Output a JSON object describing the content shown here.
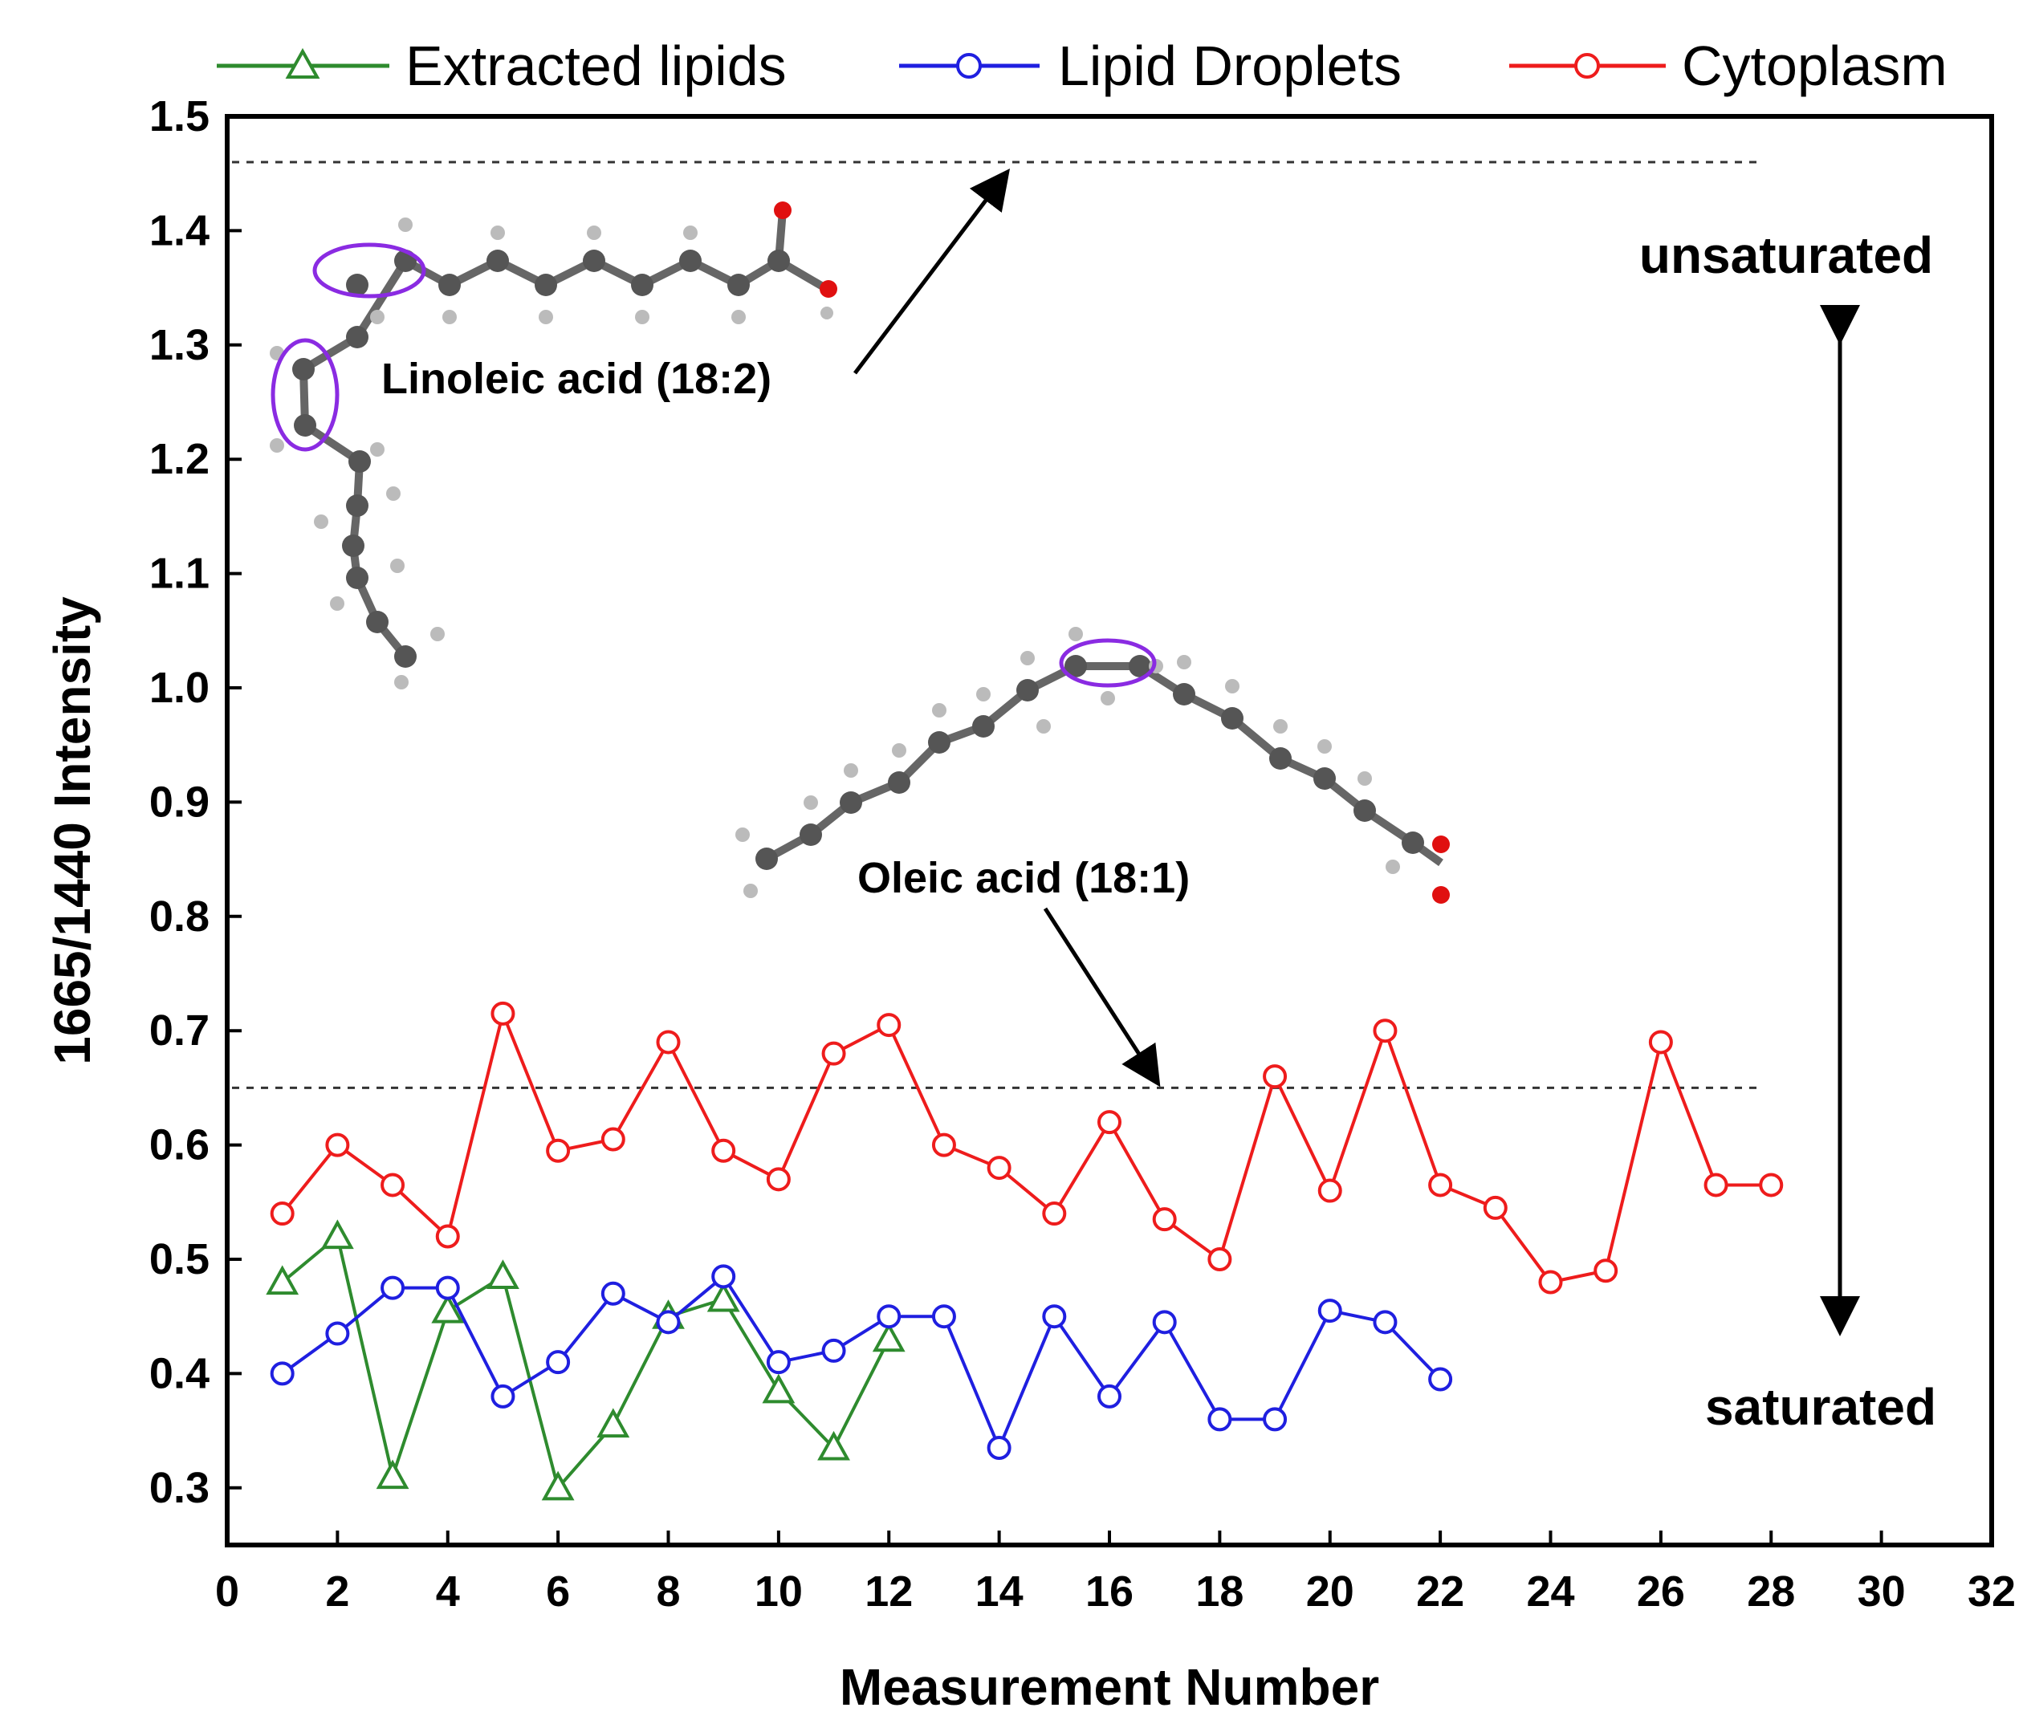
{
  "chart_data": {
    "type": "line",
    "title": "",
    "xlabel": "Measurement Number",
    "ylabel": "1665/1440 Intensity",
    "xlim": [
      0,
      32
    ],
    "ylim": [
      0.25,
      1.5
    ],
    "xticks": [
      0,
      2,
      4,
      6,
      8,
      10,
      12,
      14,
      16,
      18,
      20,
      22,
      24,
      26,
      28,
      30,
      32
    ],
    "yticks": [
      0.3,
      0.4,
      0.5,
      0.6,
      0.7,
      0.8,
      0.9,
      1.0,
      1.1,
      1.2,
      1.3,
      1.4,
      1.5
    ],
    "legend_position": "top",
    "series": [
      {
        "name": "Extracted lipids",
        "color": "#2e8b2e",
        "marker": "triangle",
        "x": [
          1,
          2,
          3,
          4,
          5,
          6,
          7,
          8,
          9,
          10,
          11,
          12
        ],
        "values": [
          0.48,
          0.52,
          0.31,
          0.455,
          0.485,
          0.3,
          0.355,
          0.45,
          0.465,
          0.385,
          0.335,
          0.43
        ]
      },
      {
        "name": "Lipid Droplets",
        "color": "#1f1fe0",
        "marker": "circle",
        "x": [
          1,
          2,
          3,
          4,
          5,
          6,
          7,
          8,
          9,
          10,
          11,
          12,
          13,
          14,
          15,
          16,
          17,
          18,
          19,
          20,
          21,
          22
        ],
        "values": [
          0.4,
          0.435,
          0.475,
          0.475,
          0.38,
          0.41,
          0.47,
          0.445,
          0.485,
          0.41,
          0.42,
          0.45,
          0.45,
          0.335,
          0.45,
          0.38,
          0.445,
          0.36,
          0.36,
          0.455,
          0.445,
          0.395
        ]
      },
      {
        "name": "Cytoplasm",
        "color": "#ee1c1c",
        "marker": "circle",
        "x": [
          1,
          2,
          3,
          4,
          5,
          6,
          7,
          8,
          9,
          10,
          11,
          12,
          13,
          14,
          15,
          16,
          17,
          18,
          19,
          20,
          21,
          22,
          23,
          24,
          25,
          26,
          27,
          28
        ],
        "values": [
          0.54,
          0.6,
          0.565,
          0.52,
          0.715,
          0.595,
          0.605,
          0.69,
          0.595,
          0.57,
          0.68,
          0.705,
          0.6,
          0.58,
          0.54,
          0.62,
          0.535,
          0.5,
          0.66,
          0.56,
          0.7,
          0.565,
          0.545,
          0.48,
          0.49,
          0.69,
          0.565,
          0.565
        ]
      }
    ],
    "reference_lines": [
      {
        "label": "Linoleic acid (18:2)",
        "y": 1.46,
        "x_start": 0,
        "x_end": 28
      },
      {
        "label": "Oleic acid (18:1)",
        "y": 0.65,
        "x_start": 0,
        "x_end": 28
      }
    ],
    "annotations": {
      "top_label": "unsaturated",
      "bottom_label": "saturated"
    }
  }
}
